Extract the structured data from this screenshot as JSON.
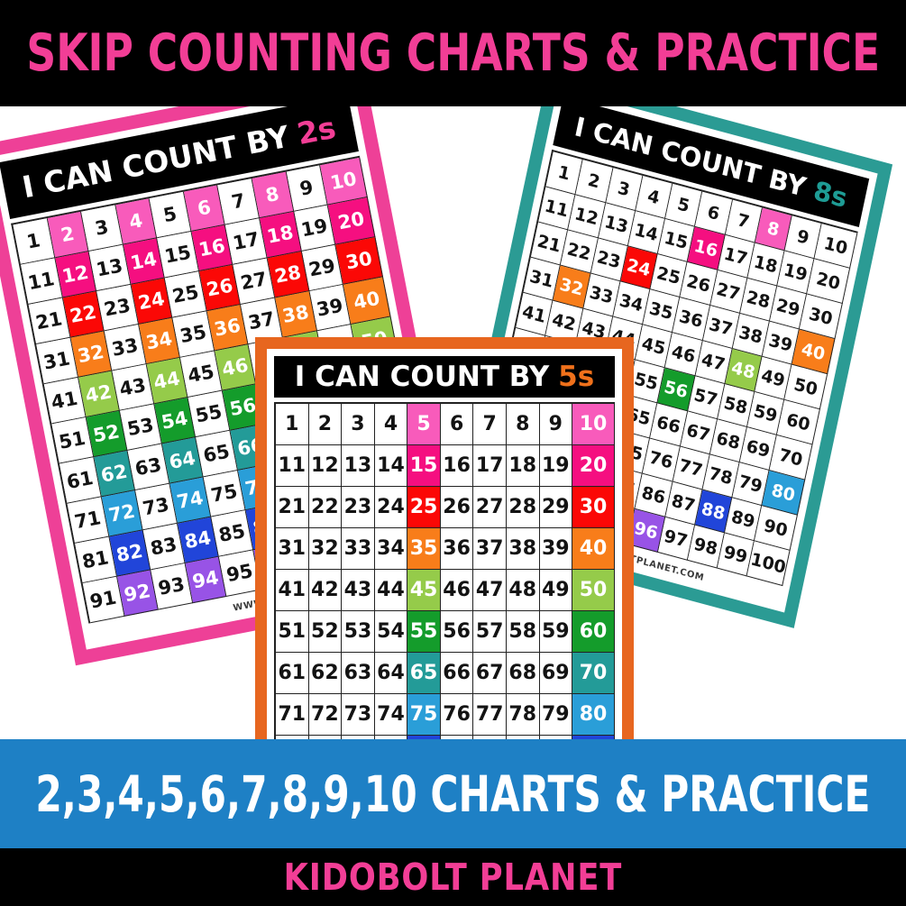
{
  "banner_top": {
    "text": "SKIP COUNTING CHARTS & PRACTICE",
    "text_color": "#F23E96",
    "bg_color": "#000000"
  },
  "banner_bottom": {
    "text": "2,3,4,5,6,7,8,9,10 CHARTS & PRACTICE",
    "text_color": "#FFFFFF",
    "bg_color": "#1E80C5"
  },
  "footer": {
    "text": "KIDOBOLT PLANET",
    "text_color": "#F23E96",
    "bg_color": "#000000"
  },
  "watermark_text": "WWW.KIDOBOLTPLANET.COM",
  "row_colors": [
    "#F85BBB",
    "#F50F80",
    "#FB0806",
    "#F87D1A",
    "#95CB4A",
    "#149C2B",
    "#239B98",
    "#2A9ED8",
    "#2145D9",
    "#9853E6"
  ],
  "grid": {
    "first_number": 1,
    "last_number": 100,
    "columns": 10
  },
  "charts": [
    {
      "id": "2s",
      "title_prefix": "I CAN COUNT BY",
      "title_accent": "2s",
      "accent_color": "#F23E96",
      "frame_color": "#EE4097",
      "highlight_step": 2,
      "show_watermark": true
    },
    {
      "id": "8s",
      "title_prefix": "I CAN COUNT BY",
      "title_accent": "8s",
      "accent_color": "#1E9C95",
      "frame_color": "#2B9B94",
      "highlight_step": 8,
      "show_watermark": true
    },
    {
      "id": "5s",
      "title_prefix": "I CAN COUNT BY",
      "title_accent": "5s",
      "accent_color": "#F0711B",
      "frame_color": "#E7661F",
      "highlight_step": 5,
      "show_watermark": true
    }
  ]
}
